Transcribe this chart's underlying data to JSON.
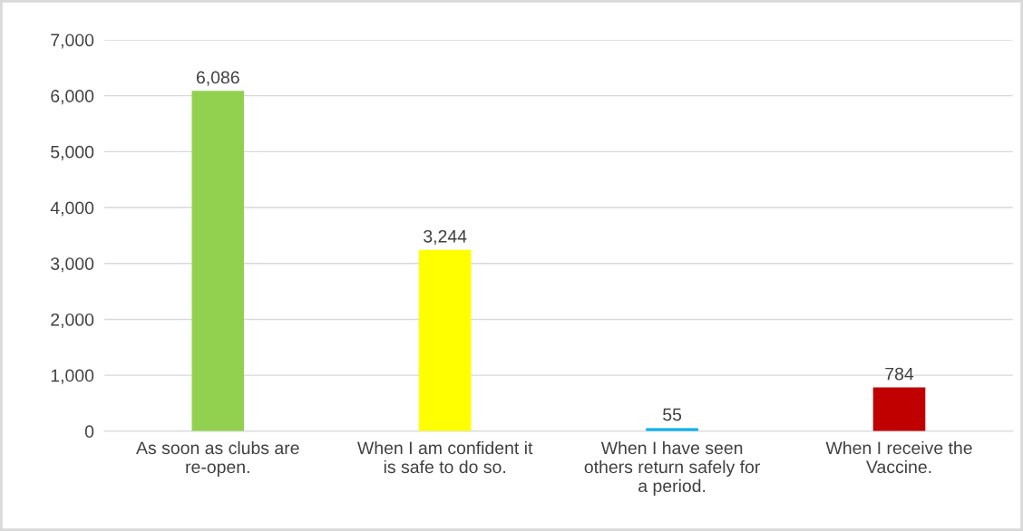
{
  "chart_data": {
    "type": "bar",
    "categories": [
      "As soon as clubs are\nre-open.",
      "When I am confident it\nis safe to do so.",
      "When I have seen\nothers return safely for\na period.",
      "When I receive the\nVaccine."
    ],
    "values": [
      6086,
      3244,
      55,
      784
    ],
    "colors": [
      "#92d050",
      "#ffff00",
      "#00b0f0",
      "#c00000"
    ],
    "value_labels": [
      "6,086",
      "3,244",
      "55",
      "784"
    ],
    "ylim": [
      0,
      7000
    ],
    "yticks": [
      0,
      {
        "value": 1000,
        "label": "1,000"
      },
      {
        "value": 2000,
        "label": "2,000"
      },
      {
        "value": 3000,
        "label": "3,000"
      },
      {
        "value": 4000,
        "label": "4,000"
      },
      {
        "value": 5000,
        "label": "5,000"
      },
      {
        "value": 6000,
        "label": "6,000"
      },
      {
        "value": 7000,
        "label": "7,000"
      }
    ],
    "grid": "y"
  }
}
